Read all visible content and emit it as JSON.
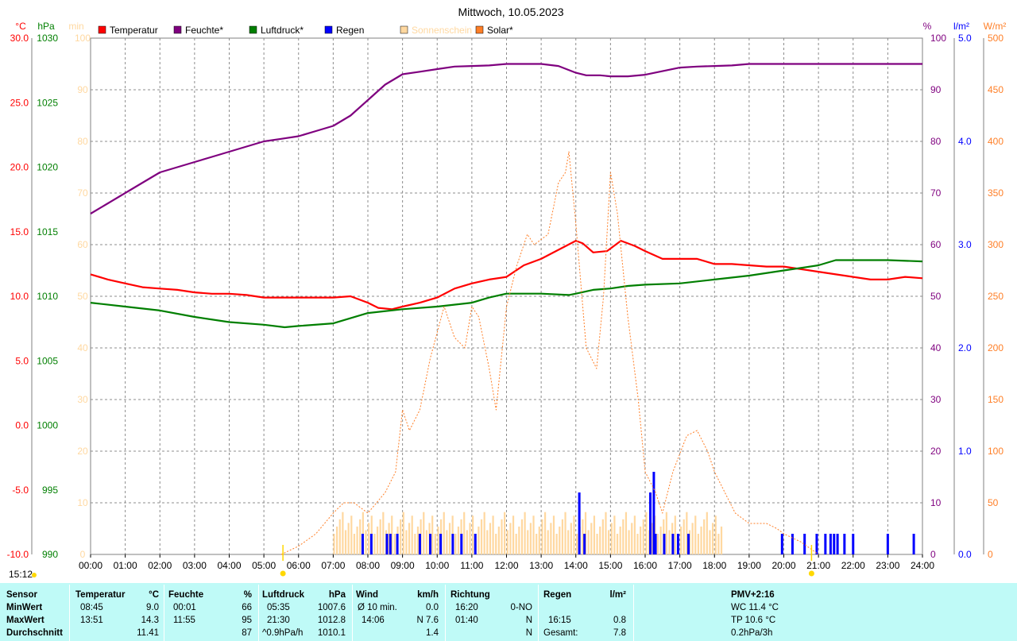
{
  "title": "Mittwoch, 10.05.2023",
  "colors": {
    "temperature": "#ff0000",
    "humidity": "#7f007f",
    "pressure": "#007f00",
    "rain": "#0000ff",
    "sunshine": "#ffd8a0",
    "solar": "#ff7f27",
    "stats_bg": "#bffaf7"
  },
  "left_axis_units": {
    "temp": "°C",
    "pressure": "hPa",
    "sun": "min"
  },
  "right_axis_units": {
    "humidity": "%",
    "rain": "l/m²",
    "solar": "W/m²"
  },
  "legend": [
    {
      "label": "Temperatur",
      "color": "#ff0000",
      "icon": "legend-swatch"
    },
    {
      "label": "Feuchte*",
      "color": "#7f007f",
      "icon": "legend-swatch"
    },
    {
      "label": "Luftdruck*",
      "color": "#007f00",
      "icon": "legend-swatch"
    },
    {
      "label": "Regen",
      "color": "#0000ff",
      "icon": "legend-swatch"
    },
    {
      "label": "Sonnenschein",
      "color": "#ffd8a0",
      "icon": "legend-swatch"
    },
    {
      "label": "Solar*",
      "color": "#ff7f27",
      "icon": "legend-swatch"
    }
  ],
  "clock": "15:12",
  "chart_data": {
    "type": "line",
    "title": "Mittwoch, 10.05.2023",
    "xlabel": "",
    "x_ticks": [
      "00:00",
      "01:00",
      "02:00",
      "03:00",
      "04:00",
      "05:00",
      "06:00",
      "07:00",
      "08:00",
      "09:00",
      "10:00",
      "11:00",
      "12:00",
      "13:00",
      "14:00",
      "15:00",
      "16:00",
      "17:00",
      "18:00",
      "19:00",
      "20:00",
      "21:00",
      "22:00",
      "23:00",
      "24:00"
    ],
    "xlim_hours": [
      0,
      24
    ],
    "grid": true,
    "axes": {
      "temp": {
        "min": -10,
        "max": 30,
        "ticks": [
          "-10.0",
          "-5.0",
          "0.0",
          "5.0",
          "10.0",
          "15.0",
          "20.0",
          "25.0",
          "30.0"
        ]
      },
      "pressure": {
        "min": 990,
        "max": 1030,
        "ticks": [
          "990",
          "995",
          "1000",
          "1005",
          "1010",
          "1015",
          "1020",
          "1025",
          "1030"
        ]
      },
      "sun": {
        "min": 0,
        "max": 100,
        "ticks": [
          "0",
          "10",
          "20",
          "30",
          "40",
          "50",
          "60",
          "70",
          "80",
          "90",
          "100"
        ]
      },
      "humidity": {
        "min": 0,
        "max": 100,
        "ticks": [
          "0",
          "10",
          "20",
          "30",
          "40",
          "50",
          "60",
          "70",
          "80",
          "90",
          "100"
        ]
      },
      "rain": {
        "min": 0,
        "max": 5,
        "ticks": [
          "0.0",
          "1.0",
          "2.0",
          "3.0",
          "4.0",
          "5.0"
        ]
      },
      "solar": {
        "min": 0,
        "max": 500,
        "ticks": [
          "0",
          "50",
          "100",
          "150",
          "200",
          "250",
          "300",
          "350",
          "400",
          "450",
          "500"
        ]
      }
    },
    "series": [
      {
        "name": "Temperatur",
        "axis": "temp",
        "color": "#ff0000",
        "points": [
          [
            0,
            11.7
          ],
          [
            0.5,
            11.3
          ],
          [
            1,
            11.0
          ],
          [
            1.5,
            10.7
          ],
          [
            2,
            10.6
          ],
          [
            2.5,
            10.5
          ],
          [
            3,
            10.3
          ],
          [
            3.5,
            10.2
          ],
          [
            4,
            10.2
          ],
          [
            4.5,
            10.1
          ],
          [
            5,
            9.9
          ],
          [
            5.5,
            9.9
          ],
          [
            6,
            9.9
          ],
          [
            6.5,
            9.9
          ],
          [
            7,
            9.9
          ],
          [
            7.5,
            10.0
          ],
          [
            8,
            9.5
          ],
          [
            8.3,
            9.1
          ],
          [
            8.7,
            9.0
          ],
          [
            9,
            9.2
          ],
          [
            9.5,
            9.5
          ],
          [
            10,
            9.9
          ],
          [
            10.5,
            10.6
          ],
          [
            11,
            11.0
          ],
          [
            11.5,
            11.3
          ],
          [
            12,
            11.5
          ],
          [
            12.5,
            12.4
          ],
          [
            13,
            12.9
          ],
          [
            13.5,
            13.6
          ],
          [
            14,
            14.3
          ],
          [
            14.2,
            14.1
          ],
          [
            14.5,
            13.4
          ],
          [
            14.9,
            13.5
          ],
          [
            15.3,
            14.3
          ],
          [
            15.7,
            13.9
          ],
          [
            16,
            13.5
          ],
          [
            16.5,
            12.9
          ],
          [
            17,
            12.9
          ],
          [
            17.5,
            12.9
          ],
          [
            18,
            12.5
          ],
          [
            18.5,
            12.5
          ],
          [
            19,
            12.4
          ],
          [
            19.5,
            12.3
          ],
          [
            20,
            12.3
          ],
          [
            20.5,
            12.1
          ],
          [
            21,
            11.9
          ],
          [
            21.5,
            11.7
          ],
          [
            22,
            11.5
          ],
          [
            22.5,
            11.3
          ],
          [
            23,
            11.3
          ],
          [
            23.5,
            11.5
          ],
          [
            24,
            11.4
          ]
        ]
      },
      {
        "name": "Feuchte*",
        "axis": "humidity",
        "color": "#7f007f",
        "points": [
          [
            0,
            66
          ],
          [
            0.5,
            68
          ],
          [
            1,
            70
          ],
          [
            1.5,
            72
          ],
          [
            2,
            74
          ],
          [
            2.5,
            75
          ],
          [
            3,
            76
          ],
          [
            3.5,
            77
          ],
          [
            4,
            78
          ],
          [
            4.5,
            79
          ],
          [
            5,
            80
          ],
          [
            5.5,
            80.5
          ],
          [
            6,
            81
          ],
          [
            6.5,
            82
          ],
          [
            7,
            83
          ],
          [
            7.5,
            85
          ],
          [
            8,
            88
          ],
          [
            8.5,
            91
          ],
          [
            9,
            93
          ],
          [
            9.5,
            93.5
          ],
          [
            10,
            94
          ],
          [
            10.5,
            94.5
          ],
          [
            11,
            94.6
          ],
          [
            11.5,
            94.7
          ],
          [
            12,
            95
          ],
          [
            12.5,
            95
          ],
          [
            13,
            95
          ],
          [
            13.5,
            94.6
          ],
          [
            14,
            93.3
          ],
          [
            14.3,
            92.8
          ],
          [
            14.7,
            92.8
          ],
          [
            15,
            92.6
          ],
          [
            15.5,
            92.6
          ],
          [
            16,
            92.9
          ],
          [
            16.5,
            93.6
          ],
          [
            17,
            94.3
          ],
          [
            17.5,
            94.5
          ],
          [
            18,
            94.6
          ],
          [
            18.5,
            94.7
          ],
          [
            19,
            95
          ],
          [
            20,
            95
          ],
          [
            21,
            95
          ],
          [
            22,
            95
          ],
          [
            23,
            95
          ],
          [
            24,
            95
          ]
        ]
      },
      {
        "name": "Luftdruck*",
        "axis": "pressure",
        "color": "#007f00",
        "points": [
          [
            0,
            1009.5
          ],
          [
            1,
            1009.2
          ],
          [
            2,
            1008.9
          ],
          [
            3,
            1008.4
          ],
          [
            4,
            1008.0
          ],
          [
            5,
            1007.8
          ],
          [
            5.6,
            1007.6
          ],
          [
            6,
            1007.7
          ],
          [
            7,
            1007.9
          ],
          [
            7.5,
            1008.3
          ],
          [
            8,
            1008.7
          ],
          [
            9,
            1009.0
          ],
          [
            10,
            1009.2
          ],
          [
            11,
            1009.5
          ],
          [
            11.5,
            1009.9
          ],
          [
            12,
            1010.2
          ],
          [
            13,
            1010.2
          ],
          [
            13.8,
            1010.1
          ],
          [
            14,
            1010.2
          ],
          [
            14.5,
            1010.5
          ],
          [
            15,
            1010.6
          ],
          [
            15.5,
            1010.8
          ],
          [
            16,
            1010.9
          ],
          [
            17,
            1011.0
          ],
          [
            18,
            1011.3
          ],
          [
            19,
            1011.6
          ],
          [
            20,
            1012.0
          ],
          [
            21,
            1012.4
          ],
          [
            21.5,
            1012.8
          ],
          [
            22,
            1012.8
          ],
          [
            23,
            1012.8
          ],
          [
            24,
            1012.7
          ]
        ]
      },
      {
        "name": "Solar*",
        "axis": "solar",
        "color": "#ff7f27",
        "style": "dashed",
        "points": [
          [
            5.5,
            0
          ],
          [
            6,
            8
          ],
          [
            6.5,
            20
          ],
          [
            7,
            40
          ],
          [
            7.3,
            50
          ],
          [
            7.6,
            50
          ],
          [
            8,
            40
          ],
          [
            8.5,
            60
          ],
          [
            8.8,
            80
          ],
          [
            9,
            140
          ],
          [
            9.2,
            120
          ],
          [
            9.5,
            140
          ],
          [
            9.8,
            190
          ],
          [
            10.2,
            240
          ],
          [
            10.5,
            210
          ],
          [
            10.8,
            200
          ],
          [
            11,
            240
          ],
          [
            11.2,
            230
          ],
          [
            11.5,
            180
          ],
          [
            11.7,
            140
          ],
          [
            12,
            240
          ],
          [
            12.3,
            280
          ],
          [
            12.6,
            310
          ],
          [
            12.8,
            300
          ],
          [
            13.2,
            310
          ],
          [
            13.5,
            360
          ],
          [
            13.7,
            370
          ],
          [
            13.8,
            390
          ],
          [
            14,
            320
          ],
          [
            14.3,
            200
          ],
          [
            14.6,
            180
          ],
          [
            14.8,
            250
          ],
          [
            15,
            370
          ],
          [
            15.2,
            330
          ],
          [
            15.5,
            230
          ],
          [
            15.8,
            150
          ],
          [
            16,
            80
          ],
          [
            16.3,
            60
          ],
          [
            16.5,
            40
          ],
          [
            16.8,
            80
          ],
          [
            17.2,
            115
          ],
          [
            17.5,
            120
          ],
          [
            17.8,
            100
          ],
          [
            18,
            80
          ],
          [
            18.3,
            60
          ],
          [
            18.6,
            40
          ],
          [
            19,
            30
          ],
          [
            19.5,
            30
          ],
          [
            19.8,
            25
          ],
          [
            20,
            20
          ],
          [
            20.5,
            12
          ],
          [
            21,
            0
          ]
        ]
      }
    ],
    "rain_events": [
      {
        "t": 7.85,
        "v": 0.2
      },
      {
        "t": 8.1,
        "v": 0.2
      },
      {
        "t": 8.55,
        "v": 0.2
      },
      {
        "t": 8.65,
        "v": 0.2
      },
      {
        "t": 8.85,
        "v": 0.2
      },
      {
        "t": 9.5,
        "v": 0.2
      },
      {
        "t": 9.8,
        "v": 0.2
      },
      {
        "t": 10.1,
        "v": 0.2
      },
      {
        "t": 10.45,
        "v": 0.2
      },
      {
        "t": 10.7,
        "v": 0.2
      },
      {
        "t": 11.1,
        "v": 0.2
      },
      {
        "t": 14.1,
        "v": 0.6
      },
      {
        "t": 14.25,
        "v": 0.2
      },
      {
        "t": 16.15,
        "v": 0.6
      },
      {
        "t": 16.25,
        "v": 0.8
      },
      {
        "t": 16.3,
        "v": 0.2
      },
      {
        "t": 16.55,
        "v": 0.2
      },
      {
        "t": 16.8,
        "v": 0.2
      },
      {
        "t": 16.95,
        "v": 0.2
      },
      {
        "t": 17.25,
        "v": 0.2
      },
      {
        "t": 19.95,
        "v": 0.2
      },
      {
        "t": 20.25,
        "v": 0.2
      },
      {
        "t": 20.6,
        "v": 0.2
      },
      {
        "t": 20.95,
        "v": 0.2
      },
      {
        "t": 21.2,
        "v": 0.2
      },
      {
        "t": 21.35,
        "v": 0.2
      },
      {
        "t": 21.45,
        "v": 0.2
      },
      {
        "t": 21.55,
        "v": 0.2
      },
      {
        "t": 21.75,
        "v": 0.2
      },
      {
        "t": 22,
        "v": 0.2
      },
      {
        "t": 23,
        "v": 0.2
      },
      {
        "t": 23.75,
        "v": 0.2
      }
    ],
    "sunshine": {
      "start_hour": 7,
      "end_hour": 18.2,
      "approx_minutes_per_bar": 5
    }
  },
  "stats": {
    "headers": {
      "sensor": "Sensor",
      "temp": "Temperatur",
      "temp_unit": "°C",
      "hum": "Feuchte",
      "hum_unit": "%",
      "press": "Luftdruck",
      "press_unit": "hPa",
      "wind": "Wind",
      "wind_unit": "km/h",
      "dir": "Richtung",
      "rain": "Regen",
      "rain_unit": "l/m²",
      "pmv": "PMV+2:16"
    },
    "min": {
      "label": "MinWert",
      "temp_time": "08:45",
      "temp": "9.0",
      "hum_time": "00:01",
      "hum": "66",
      "press_time": "05:35",
      "press": "1007.6",
      "wind_label": "Ø 10 min.",
      "wind": "0.0",
      "dir_time": "16:20",
      "dir": "0-NO",
      "rain_time": "",
      "rain": "",
      "pmv": "WC 11.4 °C"
    },
    "max": {
      "label": "MaxWert",
      "temp_time": "13:51",
      "temp": "14.3",
      "hum_time": "11:55",
      "hum": "95",
      "press_time": "21:30",
      "press": "1012.8",
      "wind_label": "14:06",
      "wind": "N 7.6",
      "dir_time": "01:40",
      "dir": "N",
      "rain_time": "16:15",
      "rain": "0.8",
      "pmv": "TP 10.6 °C"
    },
    "avg": {
      "label": "Durchschnitt",
      "temp": "11.41",
      "hum": "87",
      "press_note": "^0.9hPa/h",
      "press": "1010.1",
      "wind": "1.4",
      "dir": "N",
      "rain_label": "Gesamt:",
      "rain": "7.8",
      "pmv": "0.2hPa/3h"
    }
  }
}
